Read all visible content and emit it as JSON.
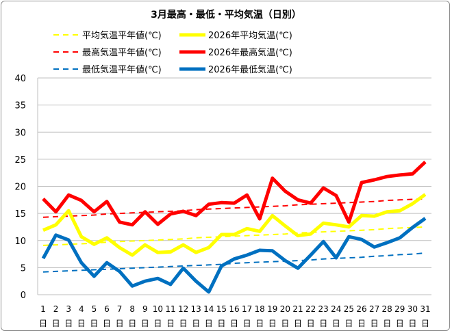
{
  "chart_data": {
    "type": "line",
    "title": "3月最高・最低・平均気温（日別）",
    "categories": [
      "1",
      "2",
      "3",
      "4",
      "5",
      "6",
      "7",
      "8",
      "9",
      "10",
      "11",
      "12",
      "13",
      "14",
      "15",
      "16",
      "17",
      "18",
      "19",
      "20",
      "21",
      "22",
      "23",
      "24",
      "25",
      "26",
      "27",
      "28",
      "29",
      "30",
      "31"
    ],
    "category_suffix": "日",
    "ylim": [
      0,
      40
    ],
    "yticks": [
      0,
      5,
      10,
      15,
      20,
      25,
      30,
      35,
      40
    ],
    "grid": true,
    "legend_position": "top",
    "series": [
      {
        "name": "平均気温平年値(℃)",
        "color": "#ffff00",
        "dashed": true,
        "values": [
          9.1,
          9.2,
          9.3,
          9.4,
          9.5,
          9.7,
          9.8,
          9.9,
          10.0,
          10.1,
          10.2,
          10.3,
          10.5,
          10.6,
          10.7,
          10.8,
          10.9,
          11.0,
          11.1,
          11.2,
          11.4,
          11.5,
          11.6,
          11.7,
          11.8,
          11.9,
          12.0,
          12.2,
          12.3,
          12.4,
          12.5
        ]
      },
      {
        "name": "2026年平均気温(℃)",
        "color": "#ffff00",
        "dashed": false,
        "values": [
          11.9,
          12.9,
          15.5,
          10.7,
          9.3,
          10.5,
          8.7,
          7.3,
          9.2,
          7.8,
          7.9,
          9.2,
          7.8,
          8.7,
          11.1,
          11.1,
          12.2,
          11.7,
          14.6,
          12.7,
          10.9,
          11.2,
          13.2,
          12.9,
          12.5,
          14.6,
          14.5,
          15.3,
          15.5,
          16.8,
          18.5
        ]
      },
      {
        "name": "最高気温平年値(℃)",
        "color": "#ff0000",
        "dashed": true,
        "values": [
          14.3,
          14.4,
          14.5,
          14.6,
          14.7,
          14.9,
          15.0,
          15.1,
          15.2,
          15.3,
          15.4,
          15.5,
          15.7,
          15.8,
          15.9,
          16.0,
          16.1,
          16.2,
          16.3,
          16.4,
          16.6,
          16.7,
          16.8,
          16.9,
          17.0,
          17.1,
          17.2,
          17.4,
          17.5,
          17.6,
          17.7
        ]
      },
      {
        "name": "2026年最高気温(℃)",
        "color": "#ff0000",
        "dashed": false,
        "values": [
          17.7,
          15.3,
          18.4,
          17.4,
          15.3,
          17.2,
          13.4,
          12.9,
          15.3,
          13.0,
          14.9,
          15.4,
          14.6,
          16.7,
          17.0,
          16.9,
          18.4,
          14.0,
          21.5,
          19.1,
          17.5,
          16.9,
          19.7,
          18.3,
          13.4,
          20.7,
          21.2,
          21.8,
          22.1,
          22.3,
          24.5
        ]
      },
      {
        "name": "最低気温平年値(℃)",
        "color": "#0070c0",
        "dashed": true,
        "values": [
          4.2,
          4.3,
          4.4,
          4.5,
          4.6,
          4.7,
          4.8,
          4.9,
          5.0,
          5.1,
          5.2,
          5.3,
          5.4,
          5.5,
          5.6,
          5.8,
          5.9,
          6.0,
          6.1,
          6.2,
          6.3,
          6.4,
          6.6,
          6.7,
          6.8,
          6.9,
          7.1,
          7.2,
          7.4,
          7.5,
          7.7
        ]
      },
      {
        "name": "2026年最低気温(℃)",
        "color": "#0070c0",
        "dashed": false,
        "values": [
          6.7,
          11.0,
          10.1,
          5.9,
          3.4,
          5.9,
          4.3,
          1.6,
          2.5,
          3.0,
          1.9,
          4.9,
          2.5,
          0.5,
          5.3,
          6.6,
          7.3,
          8.2,
          8.1,
          6.3,
          4.9,
          7.3,
          9.8,
          6.8,
          10.7,
          10.2,
          8.8,
          9.6,
          10.5,
          12.4,
          14.1
        ]
      }
    ]
  }
}
